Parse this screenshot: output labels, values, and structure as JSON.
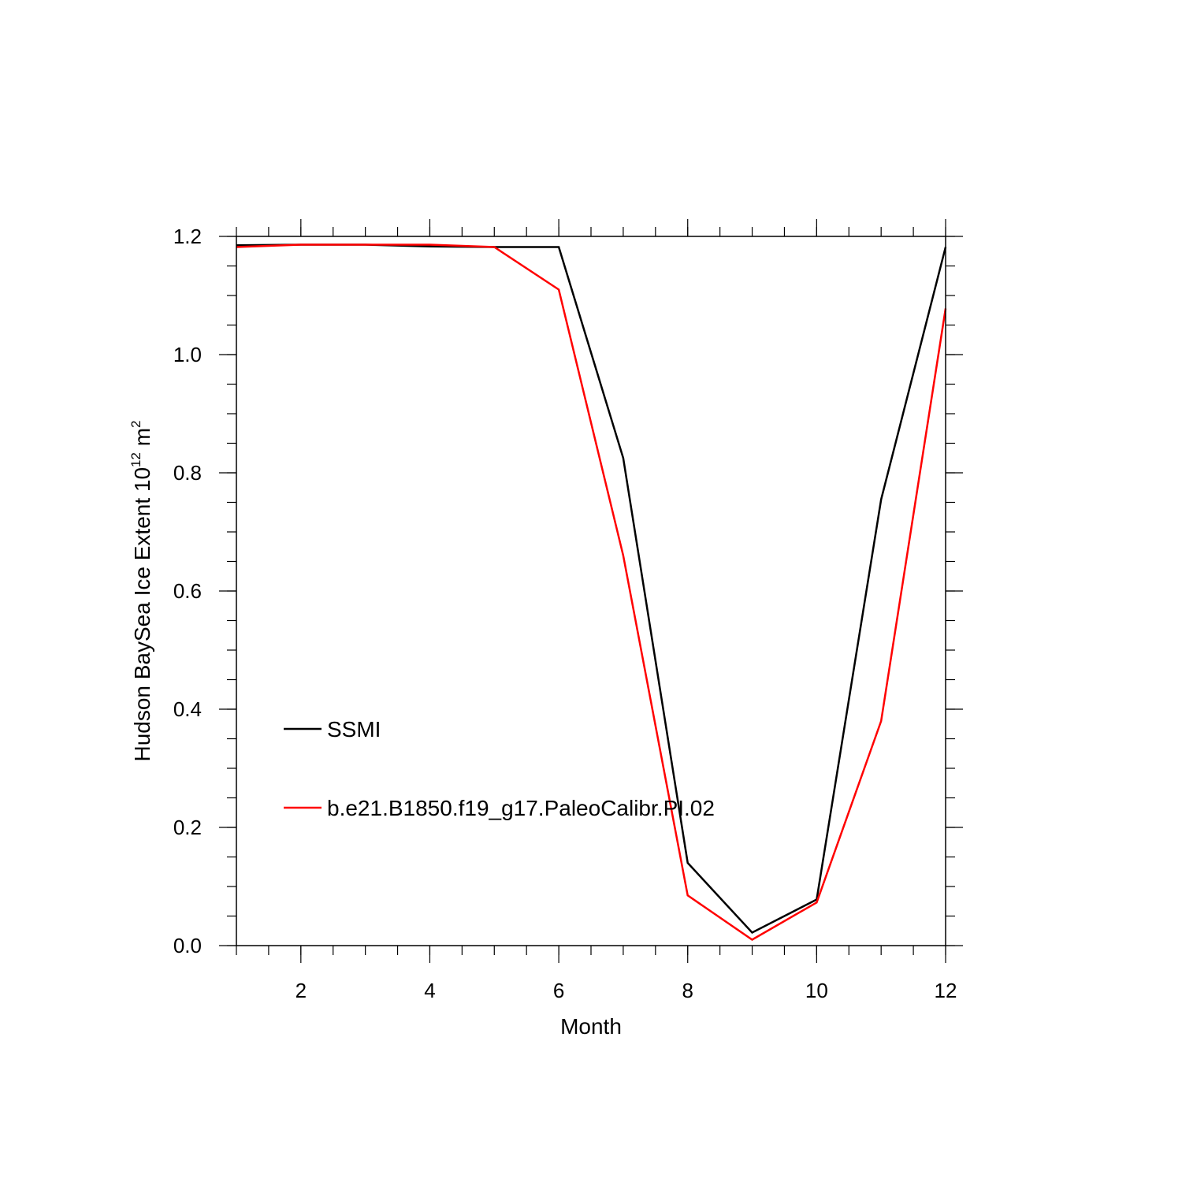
{
  "chart_data": {
    "type": "line",
    "xlabel": "Month",
    "ylabel": {
      "text": "Hudson BaySea Ice Extent 10",
      "sup1": "12",
      "mid": " m",
      "sup2": "2"
    },
    "xlim": [
      1,
      12
    ],
    "ylim": [
      0.0,
      1.2
    ],
    "x_ticks": [
      2,
      4,
      6,
      8,
      10,
      12
    ],
    "x_tick_labels": [
      "2",
      "4",
      "6",
      "8",
      "10",
      "12"
    ],
    "y_ticks": [
      0.0,
      0.2,
      0.4,
      0.6,
      0.8,
      1.0,
      1.2
    ],
    "y_tick_labels": [
      "0.0",
      "0.2",
      "0.4",
      "0.6",
      "0.8",
      "1.0",
      "1.2"
    ],
    "grid": false,
    "legend_position": "left-middle",
    "x": [
      1,
      2,
      3,
      4,
      5,
      6,
      7,
      8,
      9,
      10,
      11,
      12
    ],
    "series": [
      {
        "name": "SSMI",
        "color": "#000000",
        "values": [
          1.185,
          1.186,
          1.186,
          1.183,
          1.182,
          1.182,
          0.825,
          0.14,
          0.022,
          0.078,
          0.755,
          1.182
        ]
      },
      {
        "name": "b.e21.B1850.f19_g17.PaleoCalibr.PI.02",
        "color": "#ff0000",
        "values": [
          1.182,
          1.186,
          1.186,
          1.186,
          1.182,
          1.11,
          0.66,
          0.085,
          0.01,
          0.073,
          0.38,
          1.078
        ]
      }
    ]
  }
}
